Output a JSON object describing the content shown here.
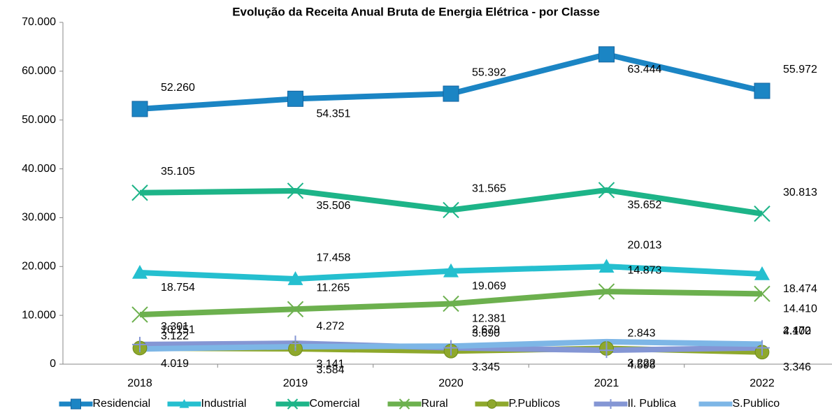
{
  "chart_data": {
    "type": "line",
    "title": "Evolução da Receita Anual Bruta de Energia Elétrica - por Classe",
    "categories": [
      "2018",
      "2019",
      "2020",
      "2021",
      "2022"
    ],
    "ylim": [
      0,
      70000
    ],
    "yticks": [
      0,
      {
        "value": 10000,
        "label": "10.000"
      },
      {
        "value": 20000,
        "label": "20.000"
      },
      {
        "value": 30000,
        "label": "30.000"
      },
      {
        "value": 40000,
        "label": "40.000"
      },
      {
        "value": 50000,
        "label": "50.000"
      },
      {
        "value": 60000,
        "label": "60.000"
      },
      {
        "value": 70000,
        "label": "70.000"
      }
    ],
    "legend": "bottom",
    "series": [
      {
        "name": "Residencial",
        "color": "#1b85c4",
        "marker": "square",
        "values": [
          52260,
          54351,
          55392,
          63444,
          55972
        ],
        "value_labels": [
          "52.260",
          "54.351",
          "55.392",
          "63.444",
          "55.972"
        ]
      },
      {
        "name": "Industrial",
        "color": "#25bfcf",
        "marker": "triangle",
        "values": [
          18754,
          17458,
          19069,
          20013,
          18474
        ],
        "value_labels": [
          "18.754",
          "17.458",
          "19.069",
          "20.013",
          "18.474"
        ]
      },
      {
        "name": "Comercial",
        "color": "#1db488",
        "marker": "x",
        "values": [
          35105,
          35506,
          31565,
          35652,
          30813
        ],
        "value_labels": [
          "35.105",
          "35.506",
          "31.565",
          "35.652",
          "30.813"
        ]
      },
      {
        "name": "Rural",
        "color": "#6cb04e",
        "marker": "x",
        "values": [
          10151,
          11265,
          12381,
          14873,
          14410
        ],
        "value_labels": [
          "10.151",
          "11.265",
          "12.381",
          "14.873",
          "14.410"
        ]
      },
      {
        "name": "P.Publicos",
        "color": "#8ea82c",
        "marker": "circle",
        "values": [
          3301,
          3141,
          2679,
          3222,
          2472
        ],
        "value_labels": [
          "3.301",
          "3.141",
          "2.679",
          "3.222",
          "2.472"
        ]
      },
      {
        "name": "Il. Publica",
        "color": "#8496d4",
        "marker": "plus",
        "values": [
          4019,
          4272,
          3345,
          2843,
          3346
        ],
        "value_labels": [
          "4.019",
          "4.272",
          "3.345",
          "2.843",
          "3.346"
        ]
      },
      {
        "name": "S.Publico",
        "color": "#7db6e6",
        "marker": "none",
        "values": [
          3122,
          3584,
          3690,
          4598,
          4100
        ],
        "value_labels": [
          "3.122",
          "3.584",
          "3.690",
          "4.598",
          "4.100"
        ]
      }
    ]
  }
}
